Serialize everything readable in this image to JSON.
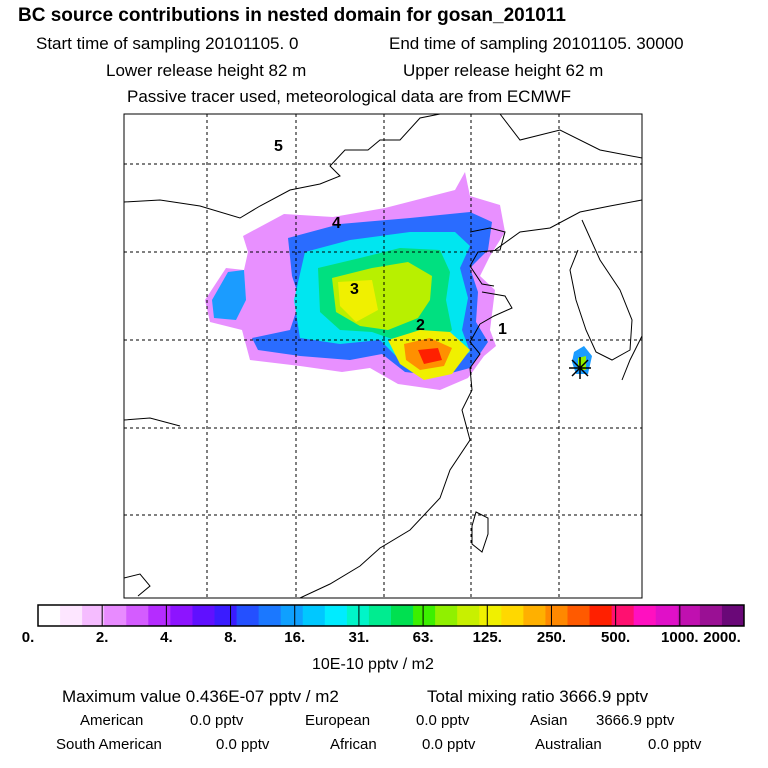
{
  "header": {
    "title": "BC  source contributions in nested domain for gosan_201011",
    "start_time": "Start time of sampling 20101105.     0",
    "end_time": "End time of sampling 20101105. 30000",
    "lower_release": "Lower release height   82 m",
    "upper_release": "Upper release height   62 m",
    "tracer_note": "Passive tracer used, meteorological data are from ECMWF"
  },
  "map": {
    "region_labels": [
      "1",
      "2",
      "3",
      "4",
      "5"
    ],
    "gridlines": "dashed",
    "receptor_marker": "star-icon"
  },
  "colorbar": {
    "ticks": [
      "0.",
      "2.",
      "4.",
      "8.",
      "16.",
      "31.",
      "63.",
      "125.",
      "250.",
      "500.",
      "1000.",
      "2000."
    ],
    "unit": "10E-10 pptv / m2",
    "colors": [
      "#ffffff",
      "#fde6ff",
      "#f5bcff",
      "#e88bff",
      "#d45cff",
      "#b52cff",
      "#8d14ff",
      "#6010ff",
      "#3a1cff",
      "#2450ff",
      "#1b78ff",
      "#0fa0ff",
      "#00c8ff",
      "#00ecff",
      "#00f5c8",
      "#00ec90",
      "#00e050",
      "#3cf000",
      "#90f000",
      "#c8f000",
      "#f0f000",
      "#ffd800",
      "#ffb000",
      "#ff8800",
      "#ff5a00",
      "#ff2000",
      "#ff1070",
      "#ff10c0",
      "#e010c8",
      "#c010b0",
      "#9a1094",
      "#6a0878"
    ]
  },
  "summary": {
    "max_value": "Maximum value  0.436E-07 pptv / m2",
    "total_mixing": "Total mixing ratio     3666.9 pptv",
    "rows": [
      [
        "American",
        "0.0 pptv",
        "European",
        "0.0 pptv",
        "Asian",
        "3666.9 pptv"
      ],
      [
        "South American",
        "0.0 pptv",
        "African",
        "0.0 pptv",
        "Australian",
        "0.0 pptv"
      ]
    ]
  },
  "chart_data": {
    "type": "heatmap",
    "title": "BC  source contributions in nested domain for gosan_201011",
    "colorbar_ticks": [
      0,
      2,
      4,
      8,
      16,
      31,
      63,
      125,
      250,
      500,
      1000,
      2000
    ],
    "colorbar_unit": "10E-10 pptv / m2",
    "maximum_value": "0.436E-07 pptv / m2",
    "total_mixing_ratio_pptv": 3666.9,
    "contributions_pptv": {
      "American": 0.0,
      "European": 0.0,
      "Asian": 3666.9,
      "South American": 0.0,
      "African": 0.0,
      "Australian": 0.0
    },
    "peak_region": "2",
    "grid": true
  }
}
